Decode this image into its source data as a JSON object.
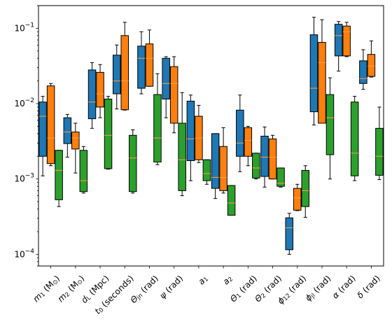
{
  "chart_data": {
    "type": "box",
    "title": "",
    "xlabel": "",
    "ylabel": "",
    "yscale": "log",
    "ylim": [
      7e-05,
      0.2
    ],
    "yticks": [
      {
        "value": 0.0001,
        "base": "10",
        "exp": "−4"
      },
      {
        "value": 0.001,
        "base": "10",
        "exp": "−3"
      },
      {
        "value": 0.01,
        "base": "10",
        "exp": "−2"
      },
      {
        "value": 0.1,
        "base": "10",
        "exp": "−1"
      }
    ],
    "categories": [
      {
        "label": "m₁ (M⊙)",
        "main": "m",
        "sub": "1",
        "rest": " (M",
        "sub2": "⊙",
        "tail": ")"
      },
      {
        "label": "m₂ (M⊙)",
        "main": "m",
        "sub": "2",
        "rest": " (M",
        "sub2": "⊙",
        "tail": ")"
      },
      {
        "label": "d_L (Mpc)",
        "main": "d",
        "sub": "L",
        "rest": " (Mpc)",
        "sub2": "",
        "tail": ""
      },
      {
        "label": "t₀ (seconds)",
        "main": "t",
        "sub": "0",
        "rest": " (seconds)",
        "sub2": "",
        "tail": ""
      },
      {
        "label": "Θ_jn (rad)",
        "main": "Θ",
        "sub": "jn",
        "rest": " (rad)",
        "sub2": "",
        "tail": ""
      },
      {
        "label": "ψ (rad)",
        "main": "ψ",
        "sub": "",
        "rest": " (rad)",
        "sub2": "",
        "tail": ""
      },
      {
        "label": "a₁",
        "main": "a",
        "sub": "1",
        "rest": "",
        "sub2": "",
        "tail": ""
      },
      {
        "label": "a₂",
        "main": "a",
        "sub": "2",
        "rest": "",
        "sub2": "",
        "tail": ""
      },
      {
        "label": "Θ₁ (rad)",
        "main": "Θ",
        "sub": "1",
        "rest": " (rad)",
        "sub2": "",
        "tail": ""
      },
      {
        "label": "Θ₂ (rad)",
        "main": "Θ",
        "sub": "2",
        "rest": " (rad)",
        "sub2": "",
        "tail": ""
      },
      {
        "label": "ϕ₁₂ (rad)",
        "main": "ϕ",
        "sub": "12",
        "rest": " (rad)",
        "sub2": "",
        "tail": ""
      },
      {
        "label": "ϕ_jl (rad)",
        "main": "ϕ",
        "sub": "jl",
        "rest": " (rad)",
        "sub2": "",
        "tail": ""
      },
      {
        "label": "α (rad)",
        "main": "α",
        "sub": "",
        "rest": " (rad)",
        "sub2": "",
        "tail": ""
      },
      {
        "label": "δ (rad)",
        "main": "δ",
        "sub": "",
        "rest": " (rad)",
        "sub2": "",
        "tail": ""
      }
    ],
    "grid": false,
    "legend": "none",
    "series": [
      {
        "color": "#1f77b4",
        "boxes": [
          {
            "whislo": 0.0011,
            "q1": 0.002,
            "med": 0.0068,
            "q3": 0.0105,
            "whishi": 0.0125
          },
          {
            "whislo": 0.00195,
            "q1": 0.00295,
            "med": 0.0042,
            "q3": 0.0065,
            "whishi": 0.0072
          },
          {
            "whislo": 0.0047,
            "q1": 0.0063,
            "med": 0.0105,
            "q3": 0.028,
            "whishi": 0.035
          },
          {
            "whislo": 0.0085,
            "q1": 0.0135,
            "med": 0.02,
            "q3": 0.044,
            "whishi": 0.06
          },
          {
            "whislo": 0.0135,
            "q1": 0.016,
            "med": 0.04,
            "q3": 0.058,
            "whishi": 0.09
          },
          {
            "whislo": 0.0065,
            "q1": 0.0115,
            "med": 0.0185,
            "q3": 0.04,
            "whishi": 0.042
          },
          {
            "whislo": 0.00095,
            "q1": 0.00175,
            "med": 0.0034,
            "q3": 0.0108,
            "whishi": 0.013
          },
          {
            "whislo": 0.00055,
            "q1": 0.00075,
            "med": 0.00105,
            "q3": 0.004,
            "whishi": 0.004
          },
          {
            "whislo": 0.00125,
            "q1": 0.002,
            "med": 0.003,
            "q3": 0.0082,
            "whishi": 0.013
          },
          {
            "whislo": 0.00078,
            "q1": 0.00108,
            "med": 0.00195,
            "q3": 0.0037,
            "whishi": 0.0049
          },
          {
            "whislo": 0.0001,
            "q1": 0.000115,
            "med": 0.000225,
            "q3": 0.000305,
            "whishi": 0.00035
          },
          {
            "whislo": 0.0052,
            "q1": 0.0078,
            "med": 0.016,
            "q3": 0.082,
            "whishi": 0.14
          },
          {
            "whislo": 0.027,
            "q1": 0.043,
            "med": 0.08,
            "q3": 0.113,
            "whishi": 0.123
          },
          {
            "whislo": 0.0155,
            "q1": 0.0185,
            "med": 0.0215,
            "q3": 0.037,
            "whishi": 0.052
          }
        ]
      },
      {
        "color": "#ff7f0e",
        "boxes": [
          {
            "whislo": 0.0015,
            "q1": 0.0016,
            "med": 0.0035,
            "q3": 0.0172,
            "whishi": 0.0185
          },
          {
            "whislo": 0.0012,
            "q1": 0.0025,
            "med": 0.0035,
            "q3": 0.0042,
            "whishi": 0.0055
          },
          {
            "whislo": 0.0065,
            "q1": 0.009,
            "med": 0.0135,
            "q3": 0.026,
            "whishi": 0.033
          },
          {
            "whislo": 0.0082,
            "q1": 0.0083,
            "med": 0.02,
            "q3": 0.08,
            "whishi": 0.12
          },
          {
            "whislo": 0.017,
            "q1": 0.017,
            "med": 0.04,
            "q3": 0.062,
            "whishi": 0.095
          },
          {
            "whislo": 0.0041,
            "q1": 0.0055,
            "med": 0.0185,
            "q3": 0.031,
            "whishi": 0.042
          },
          {
            "whislo": 0.00165,
            "q1": 0.0018,
            "med": 0.0035,
            "q3": 0.0068,
            "whishi": 0.0095
          },
          {
            "whislo": 0.00065,
            "q1": 0.0007,
            "med": 0.00105,
            "q3": 0.0027,
            "whishi": 0.0048
          },
          {
            "whislo": 0.0015,
            "q1": 0.002,
            "med": 0.00325,
            "q3": 0.0048,
            "whishi": 0.005
          },
          {
            "whislo": 0.001,
            "q1": 0.001,
            "med": 0.00195,
            "q3": 0.0034,
            "whishi": 0.0038
          },
          {
            "whislo": 0.00038,
            "q1": 0.000385,
            "med": 0.00056,
            "q3": 0.00075,
            "whishi": 0.00085
          },
          {
            "whislo": 0.0055,
            "q1": 0.0055,
            "med": 0.035,
            "q3": 0.065,
            "whishi": 0.13
          },
          {
            "whislo": 0.042,
            "q1": 0.043,
            "med": 0.09,
            "q3": 0.107,
            "whishi": 0.12
          },
          {
            "whislo": 0.0225,
            "q1": 0.023,
            "med": 0.0315,
            "q3": 0.045,
            "whishi": 0.068
          }
        ]
      },
      {
        "color": "#2ca02c",
        "boxes": [
          {
            "whislo": 0.00043,
            "q1": 0.00053,
            "med": 0.0013,
            "q3": 0.0024,
            "whishi": 0.0024
          },
          {
            "whislo": 0.00065,
            "q1": 0.00068,
            "med": 0.00095,
            "q3": 0.0024,
            "whishi": 0.0027
          },
          {
            "whislo": 0.00135,
            "q1": 0.00137,
            "med": 0.0038,
            "q3": 0.0115,
            "whishi": 0.0125
          },
          {
            "whislo": 0.00065,
            "q1": 0.00068,
            "med": 0.0019,
            "q3": 0.0038,
            "whishi": 0.0045
          },
          {
            "whislo": 0.00155,
            "q1": 0.00168,
            "med": 0.0035,
            "q3": 0.0132,
            "whishi": 0.025
          },
          {
            "whislo": 0.0006,
            "q1": 0.0007,
            "med": 0.0018,
            "q3": 0.0055,
            "whishi": 0.014
          },
          {
            "whislo": 0.00085,
            "q1": 0.00095,
            "med": 0.00118,
            "q3": 0.0018,
            "whishi": 0.0018
          },
          {
            "whislo": 0.00033,
            "q1": 0.00033,
            "med": 0.00048,
            "q3": 0.00082,
            "whishi": 0.00082
          },
          {
            "whislo": 0.001,
            "q1": 0.00103,
            "med": 0.0014,
            "q3": 0.0022,
            "whishi": 0.0022
          },
          {
            "whislo": 0.00078,
            "q1": 0.0008,
            "med": 0.00088,
            "q3": 0.0014,
            "whishi": 0.0014
          },
          {
            "whislo": 0.00031,
            "q1": 0.00043,
            "med": 0.0007,
            "q3": 0.0013,
            "whishi": 0.0015
          },
          {
            "whislo": 0.001,
            "q1": 0.0021,
            "med": 0.0065,
            "q3": 0.0132,
            "whishi": 0.022
          },
          {
            "whislo": 0.00095,
            "q1": 0.0011,
            "med": 0.0022,
            "q3": 0.0105,
            "whishi": 0.0125
          },
          {
            "whislo": 0.00098,
            "q1": 0.00112,
            "med": 0.002,
            "q3": 0.0047,
            "whishi": 0.009
          }
        ]
      }
    ],
    "median_color": "#ff9f40"
  }
}
